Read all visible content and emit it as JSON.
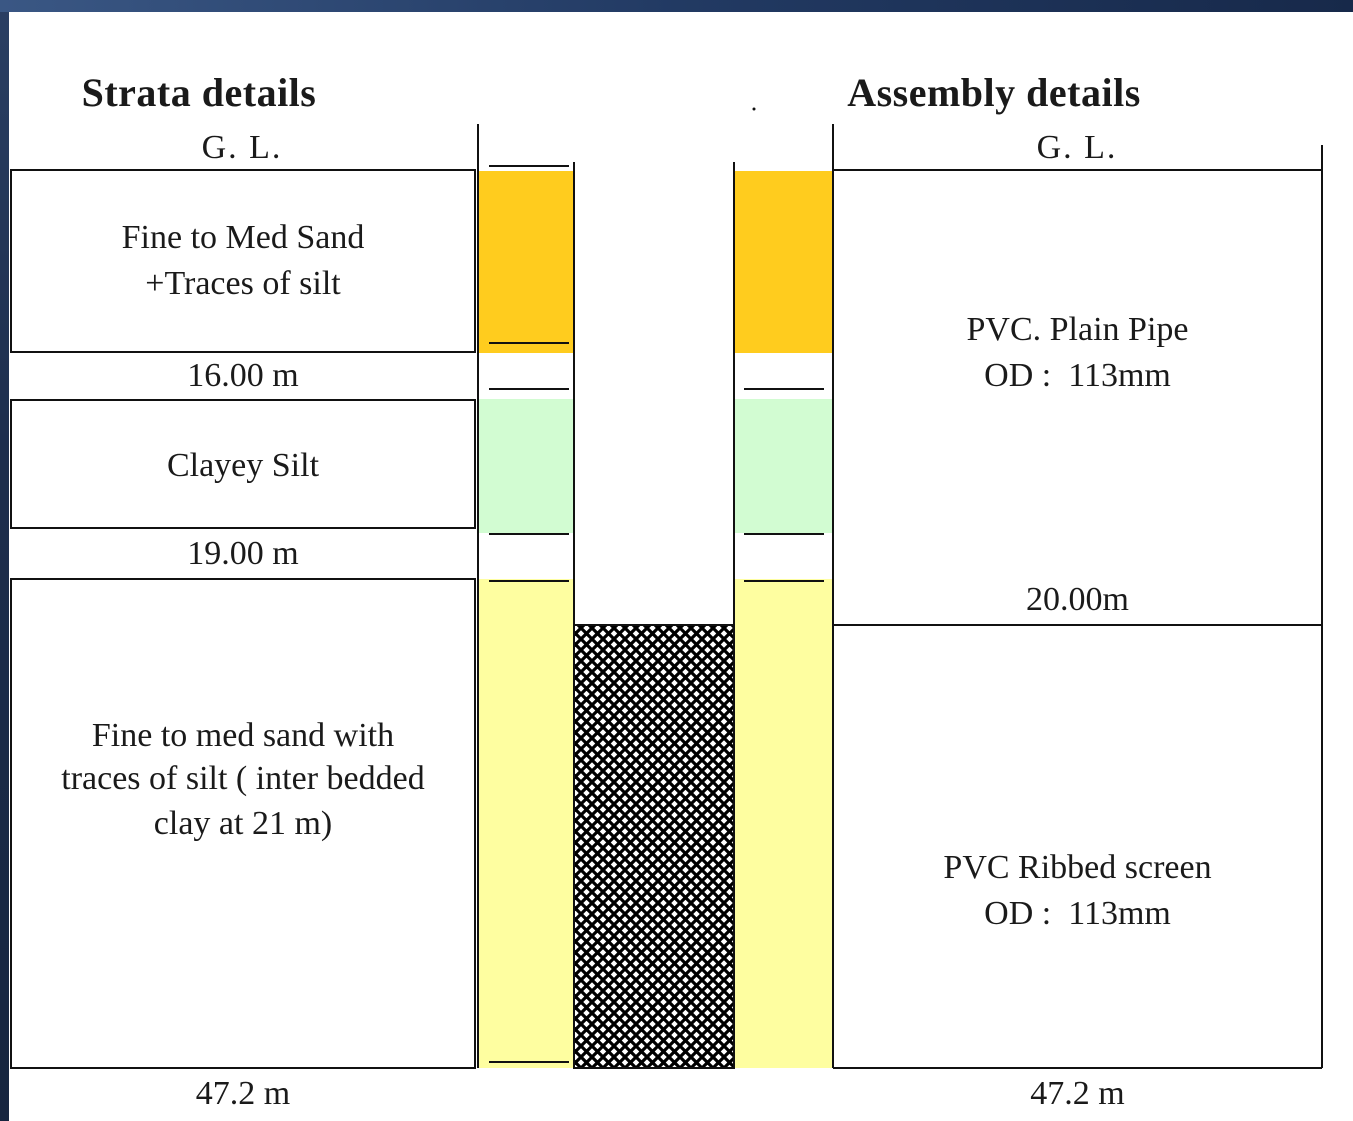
{
  "strata": {
    "heading": "Strata details",
    "ground_level": "G. L.",
    "layer1": [
      "Fine to Med Sand",
      "+Traces of silt"
    ],
    "depth1": "16.00 m",
    "layer2": "Clayey Silt",
    "depth2": "19.00 m",
    "layer3": [
      "Fine to med sand with",
      "traces of silt ( inter bedded",
      "clay at 21 m)"
    ],
    "depth_bottom": "47.2 m"
  },
  "assembly": {
    "heading": "Assembly details",
    "ground_level": "G. L.",
    "pipe": [
      "PVC. Plain Pipe",
      "OD :  113mm"
    ],
    "pipe_depth": "20.00m",
    "screen": [
      "PVC Ribbed screen",
      "OD :  113mm"
    ],
    "depth_bottom": "47.2 m"
  },
  "colors": {
    "sand_orange": "#ffcc1e",
    "clayey_silt_green": "#d2fcd2",
    "fine_sand_yellow": "#fefea0",
    "background_frame": "#1d2e4d"
  }
}
